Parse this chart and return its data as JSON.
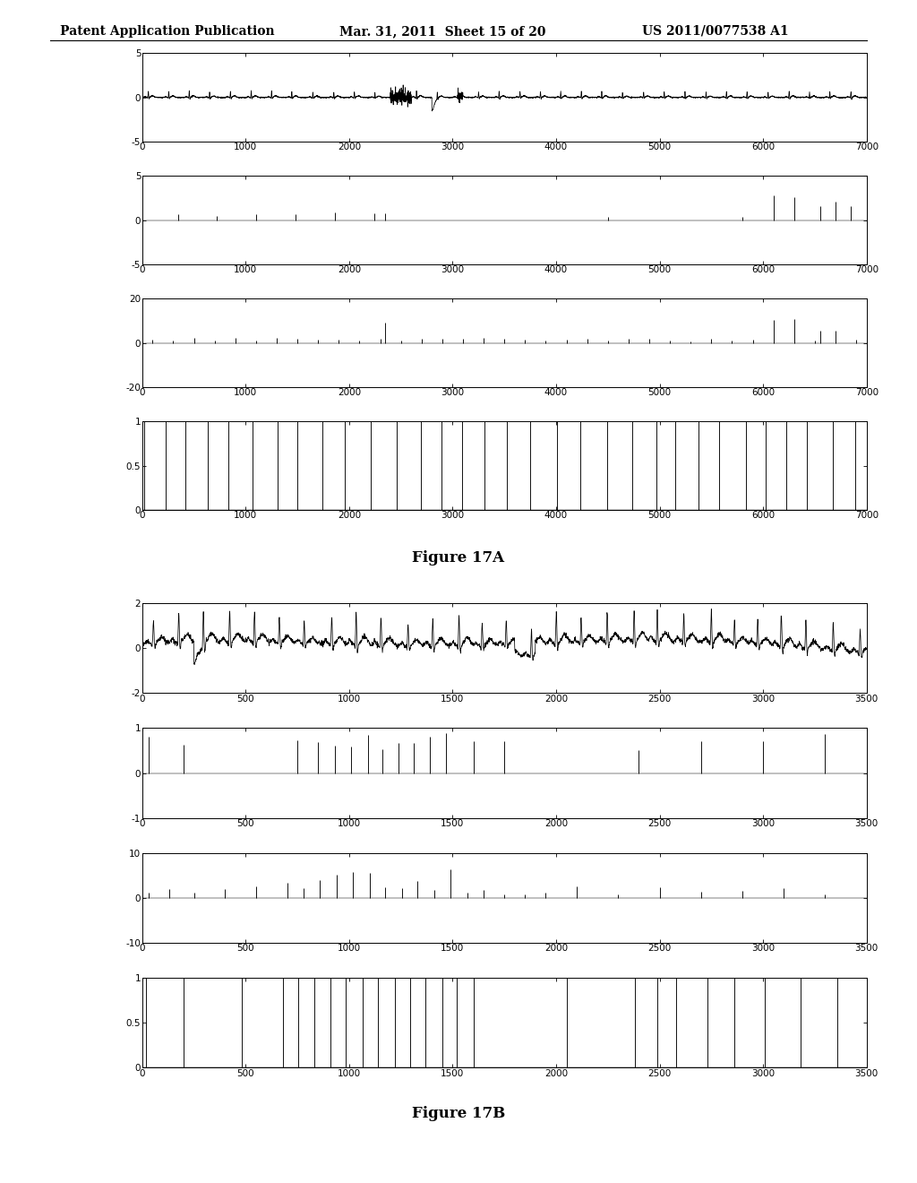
{
  "header_left": "Patent Application Publication",
  "header_mid": "Mar. 31, 2011  Sheet 15 of 20",
  "header_right": "US 2011/0077538 A1",
  "fig17A_label": "Figure 17A",
  "fig17B_label": "Figure 17B",
  "fig17A": {
    "plot1": {
      "ylim": [
        -5,
        5
      ],
      "xlim": [
        0,
        7000
      ],
      "yticks": [
        -5,
        0,
        5
      ],
      "xticks": [
        0,
        1000,
        2000,
        3000,
        4000,
        5000,
        6000,
        7000
      ]
    },
    "plot2": {
      "ylim": [
        -5,
        5
      ],
      "xlim": [
        0,
        7000
      ],
      "yticks": [
        -5,
        0,
        5
      ],
      "xticks": [
        0,
        1000,
        2000,
        3000,
        4000,
        5000,
        6000,
        7000
      ]
    },
    "plot3": {
      "ylim": [
        -20,
        20
      ],
      "xlim": [
        0,
        7000
      ],
      "yticks": [
        -20,
        0,
        20
      ],
      "xticks": [
        0,
        1000,
        2000,
        3000,
        4000,
        5000,
        6000,
        7000
      ]
    },
    "plot4": {
      "ylim": [
        0,
        1
      ],
      "xlim": [
        0,
        7000
      ],
      "yticks": [
        0,
        0.5,
        1
      ],
      "xticks": [
        0,
        1000,
        2000,
        3000,
        4000,
        5000,
        6000,
        7000
      ]
    }
  },
  "fig17B": {
    "plot1": {
      "ylim": [
        -2,
        2
      ],
      "xlim": [
        0,
        3500
      ],
      "yticks": [
        -2,
        0,
        2
      ],
      "xticks": [
        0,
        500,
        1000,
        1500,
        2000,
        2500,
        3000,
        3500
      ]
    },
    "plot2": {
      "ylim": [
        -1,
        1
      ],
      "xlim": [
        0,
        3500
      ],
      "yticks": [
        -1,
        0,
        1
      ],
      "xticks": [
        0,
        500,
        1000,
        1500,
        2000,
        2500,
        3000,
        3500
      ]
    },
    "plot3": {
      "ylim": [
        -10,
        10
      ],
      "xlim": [
        0,
        3500
      ],
      "yticks": [
        -10,
        0,
        10
      ],
      "xticks": [
        0,
        500,
        1000,
        1500,
        2000,
        2500,
        3000,
        3500
      ]
    },
    "plot4": {
      "ylim": [
        0,
        1
      ],
      "xlim": [
        0,
        3500
      ],
      "yticks": [
        0,
        0.5,
        1
      ],
      "xticks": [
        0,
        500,
        1000,
        1500,
        2000,
        2500,
        3000,
        3500
      ]
    }
  },
  "bg_color": "#ffffff",
  "tick_fontsize": 7.5,
  "header_fontsize": 10,
  "fig_label_fontsize": 12
}
